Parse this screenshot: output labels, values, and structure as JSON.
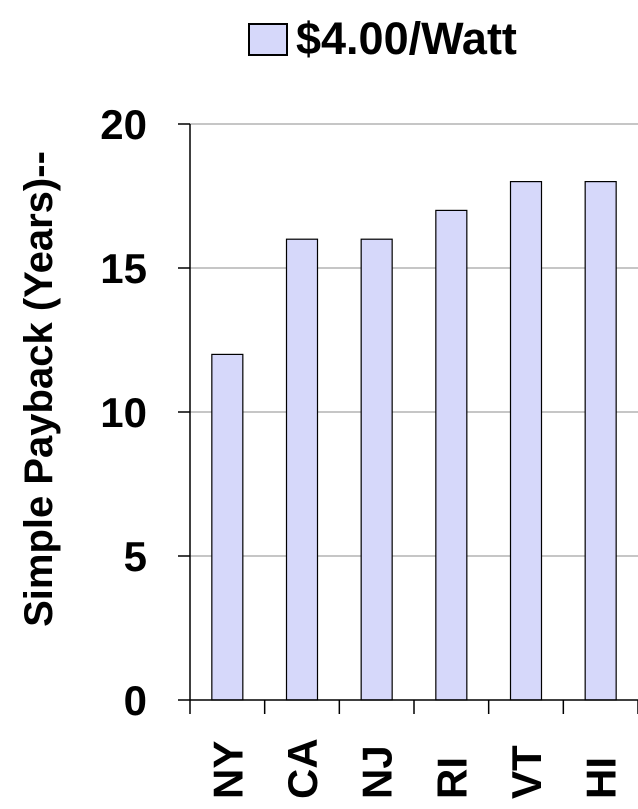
{
  "chart_data": {
    "type": "bar",
    "categories": [
      "NY",
      "CA",
      "NJ",
      "RI",
      "VT",
      "HI"
    ],
    "series": [
      {
        "name": "$4.00/Watt",
        "values": [
          12,
          16,
          16,
          17,
          18,
          18
        ],
        "color": "#d6d8fa"
      }
    ],
    "title": "",
    "xlabel": "",
    "ylabel": "Simple Payback (Years)--",
    "ylim": [
      0,
      20
    ],
    "yticks": [
      "0",
      "5",
      "10",
      "15",
      "20"
    ],
    "grid": true,
    "legend_position": "top"
  },
  "colors": {
    "bar_fill": "#d6d8fa",
    "bar_stroke": "#000000",
    "grid": "#8c8c8c",
    "axis": "#000000"
  }
}
